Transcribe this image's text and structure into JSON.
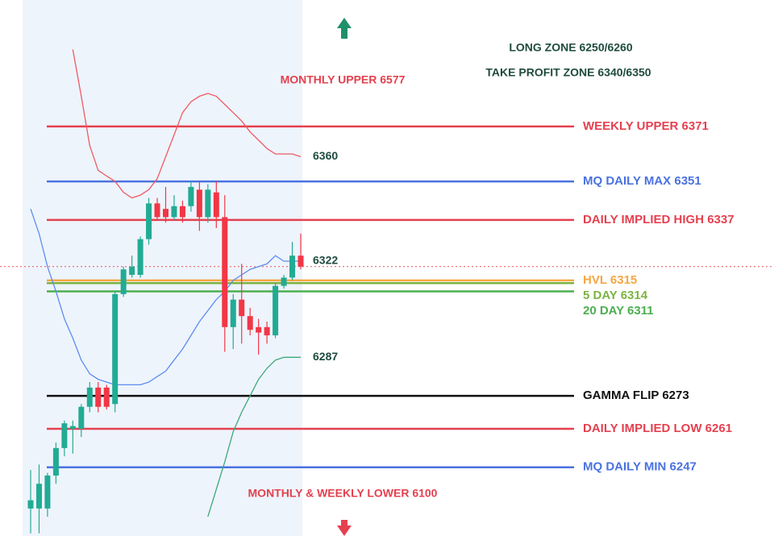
{
  "chart_data": {
    "type": "candlestick",
    "ylim": [
      6222,
      6417
    ],
    "up_color": "#22ab94",
    "down_color": "#f23645",
    "last_price": 6320,
    "last_price_color": "#e8505b",
    "ohlc": [
      [
        6232,
        6246,
        6223,
        6235
      ],
      [
        6232,
        6248,
        6223,
        6241
      ],
      [
        6232,
        6245,
        6229,
        6244
      ],
      [
        6244,
        6256,
        6241,
        6254
      ],
      [
        6254,
        6264,
        6251,
        6263
      ],
      [
        6261,
        6264,
        6252,
        6262
      ],
      [
        6261,
        6270,
        6258,
        6269
      ],
      [
        6269,
        6278,
        6267,
        6276
      ],
      [
        6276,
        6278,
        6267,
        6269
      ],
      [
        6276,
        6277,
        6268,
        6269
      ],
      [
        6270,
        6311,
        6267,
        6310
      ],
      [
        6310,
        6320,
        6309,
        6319
      ],
      [
        6317,
        6324,
        6316,
        6320
      ],
      [
        6317,
        6331,
        6316,
        6330
      ],
      [
        6330,
        6345,
        6328,
        6343
      ],
      [
        6343,
        6345,
        6337,
        6338
      ],
      [
        6341,
        6349,
        6336,
        6338
      ],
      [
        6338,
        6346,
        6337,
        6342
      ],
      [
        6342,
        6344,
        6336,
        6338
      ],
      [
        6342,
        6351,
        6340,
        6349
      ],
      [
        6348,
        6351,
        6333,
        6338
      ],
      [
        6338,
        6350,
        6336,
        6348
      ],
      [
        6347,
        6351,
        6334,
        6338
      ],
      [
        6338,
        6346,
        6289,
        6298
      ],
      [
        6298,
        6310,
        6290,
        6308
      ],
      [
        6308,
        6321,
        6292,
        6302
      ],
      [
        6302,
        6305,
        6295,
        6297
      ],
      [
        6298,
        6301,
        6288,
        6296
      ],
      [
        6298,
        6300,
        6292,
        6295
      ],
      [
        6295,
        6314,
        6294,
        6313
      ],
      [
        6313,
        6317,
        6312,
        6316
      ],
      [
        6316,
        6329,
        6315,
        6324
      ],
      [
        6324,
        6332,
        6319,
        6320
      ]
    ],
    "bands": [
      {
        "color": "#ef5a62",
        "values": [
          null,
          null,
          null,
          null,
          null,
          6399,
          6382,
          6364,
          6355,
          6353,
          6351,
          6347,
          6345,
          6346,
          6348,
          6352,
          6360,
          6368,
          6376,
          6380,
          6382,
          6383,
          6382,
          6379,
          6376,
          6373,
          6369,
          6366,
          6363,
          6361,
          6361,
          6361,
          6360
        ]
      },
      {
        "color": "#5b8def",
        "values": [
          6341,
          6332,
          6320,
          6311,
          6301,
          6294,
          6286,
          6281,
          6279,
          6278,
          6277,
          6277,
          6277,
          6277,
          6278,
          6280,
          6282,
          6286,
          6290,
          6295,
          6300,
          6304,
          6308,
          6311,
          6315,
          6317,
          6319,
          6320,
          6321,
          6324,
          6322,
          6322,
          6322
        ]
      },
      {
        "color": "#3daa7a",
        "values": [
          null,
          null,
          null,
          null,
          null,
          null,
          null,
          null,
          null,
          null,
          null,
          null,
          null,
          null,
          null,
          null,
          null,
          null,
          null,
          null,
          null,
          6229,
          6239,
          6249,
          6260,
          6267,
          6273,
          6279,
          6283,
          6286,
          6287,
          6287,
          6287
        ]
      }
    ],
    "levels": [
      {
        "label": "WEEKLY UPPER 6371",
        "value": 6371,
        "color": "#e5404f"
      },
      {
        "label": "MQ DAILY MAX 6351",
        "value": 6351,
        "color": "#4a72e0"
      },
      {
        "label": "DAILY IMPLIED HIGH 6337",
        "value": 6337,
        "color": "#e5404f"
      },
      {
        "label": "HVL 6315",
        "value": 6315,
        "color": "#f5a742"
      },
      {
        "label": "5 DAY 6314",
        "value": 6314,
        "color": "#7cb342"
      },
      {
        "label": "20 DAY 6311",
        "value": 6311,
        "color": "#4caf50"
      },
      {
        "label": "GAMMA FLIP 6273",
        "value": 6273,
        "color": "#111111"
      },
      {
        "label": "DAILY IMPLIED LOW 6261",
        "value": 6261,
        "color": "#e5404f"
      },
      {
        "label": "MQ DAILY MIN 6247",
        "value": 6247,
        "color": "#4a72e0"
      }
    ],
    "annotations": [
      "LONG ZONE 6250/6260",
      "TAKE PROFIT ZONE 6340/6350",
      "MONTHLY UPPER 6577",
      "MONTHLY & WEEKLY LOWER 6100"
    ]
  }
}
